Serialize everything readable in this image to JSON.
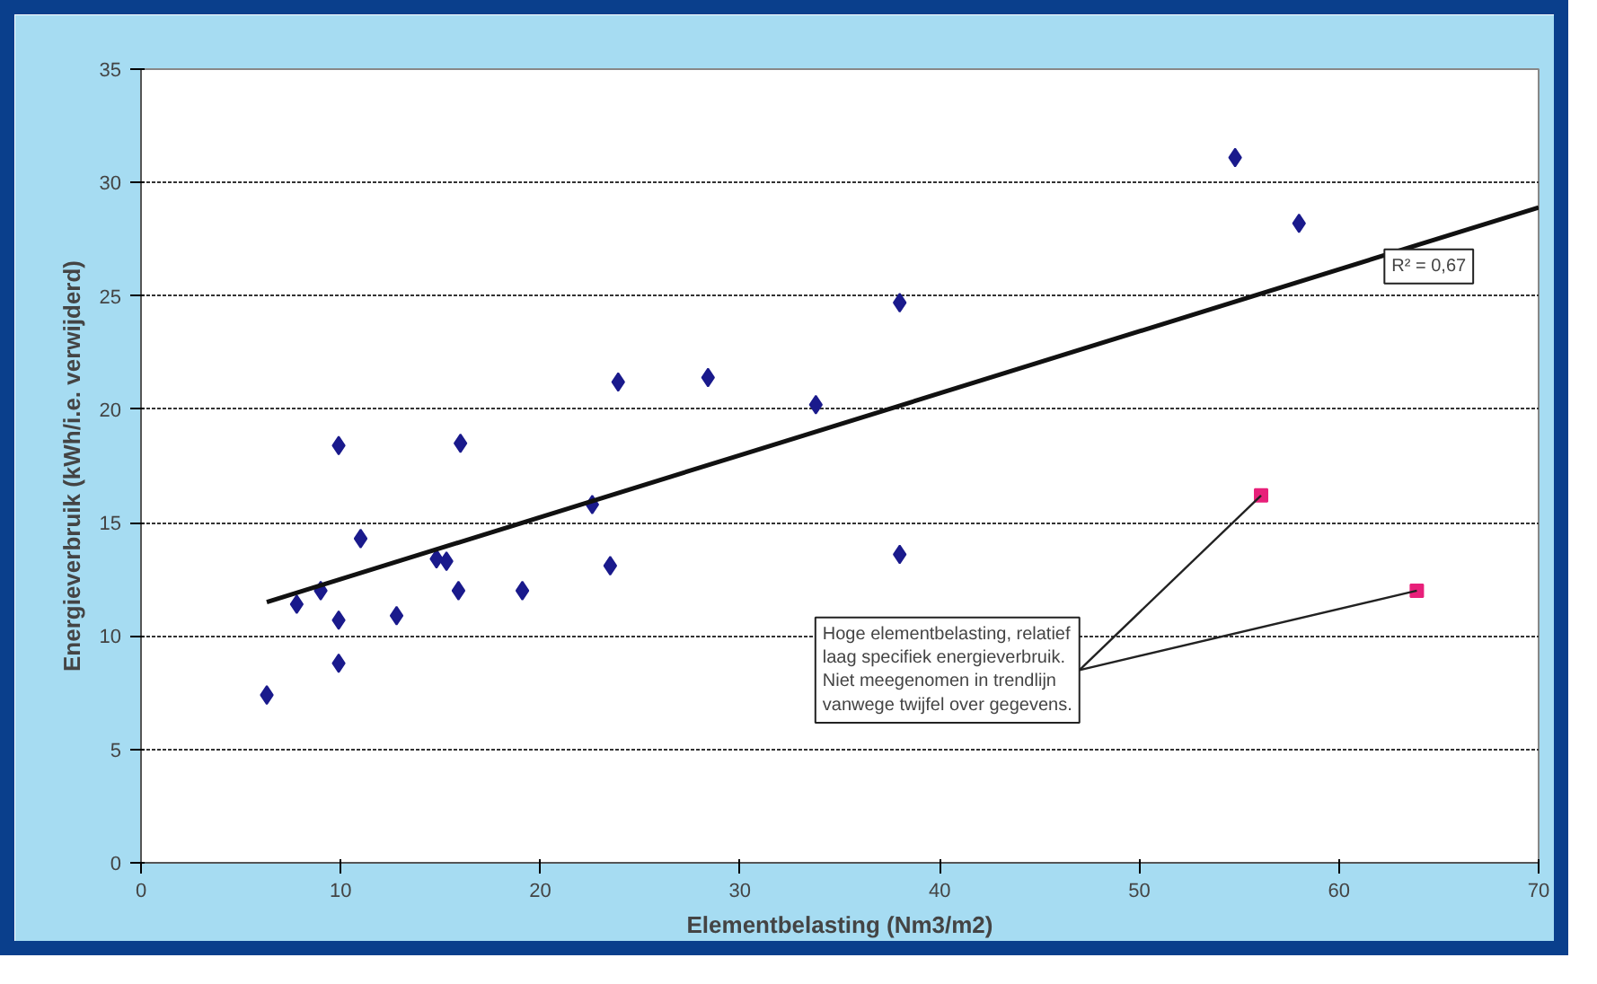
{
  "chart_data": {
    "type": "scatter",
    "xlabel": "Elementbelasting (Nm3/m2)",
    "ylabel": "Energieverbruik (kWh/i.e. verwijderd)",
    "xlim": [
      0,
      70
    ],
    "ylim": [
      0,
      35
    ],
    "xticks": [
      0,
      10,
      20,
      30,
      40,
      50,
      60,
      70
    ],
    "yticks": [
      0,
      5,
      10,
      15,
      20,
      25,
      30,
      35
    ],
    "grid": "y",
    "series": [
      {
        "marker": "diamond",
        "color": "#1a1a8c",
        "x": [
          6.3,
          7.8,
          9.0,
          9.9,
          9.9,
          9.9,
          11.0,
          12.8,
          14.8,
          15.3,
          15.9,
          16.0,
          19.1,
          22.6,
          23.5,
          23.9,
          28.4,
          33.8,
          38.0,
          38.0,
          54.8,
          58.0
        ],
        "values": [
          7.4,
          11.4,
          12.0,
          8.8,
          10.7,
          18.4,
          14.3,
          10.9,
          13.4,
          13.3,
          12.0,
          18.5,
          12.0,
          15.8,
          13.1,
          21.2,
          21.4,
          20.2,
          24.7,
          13.6,
          31.1,
          28.2
        ]
      },
      {
        "marker": "square",
        "color": "#e8207a",
        "x": [
          56.1,
          63.9
        ],
        "values": [
          16.2,
          12.0
        ]
      },
      {
        "type": "line",
        "color": "#111111",
        "x": [
          6.3,
          70
        ],
        "values": [
          11.5,
          28.9
        ]
      }
    ],
    "annotations": [
      "R² = 0,67",
      {
        "text": "Hoge elementbelasting, relatief\nlaag specifiek energieverbruik.\nNiet meegenomen in trendlijn\nvanwege twijfel over gegevens.",
        "x": 56.1,
        "y": 16.2
      }
    ]
  }
}
